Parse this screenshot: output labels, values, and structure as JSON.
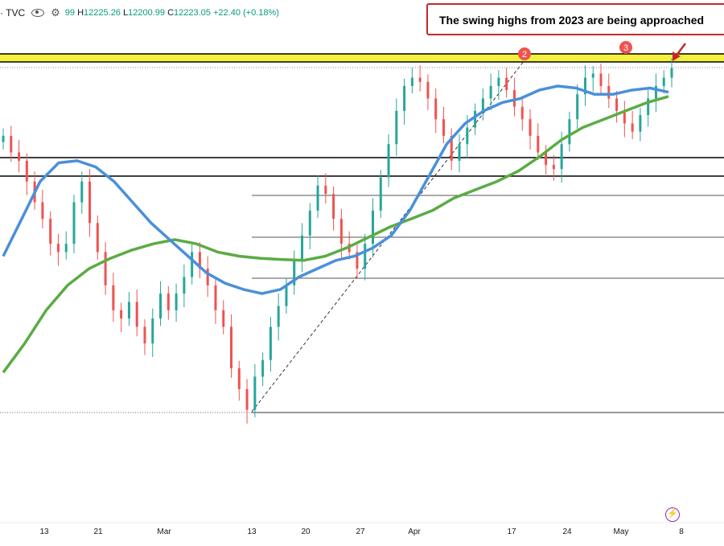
{
  "legend": {
    "symbol": "· TVC",
    "open_fragment": "99",
    "high_label": "H",
    "high": "12225.26",
    "low_label": "L",
    "low": "12200.99",
    "close_label": "C",
    "close": "12223.05",
    "change": "+22.40 (+0.18%)"
  },
  "annotation": {
    "text": "The swing highs from 2023 are being approached",
    "markers": [
      "2",
      "3"
    ]
  },
  "icons": {
    "visibility": "eye-icon",
    "settings": "gear-icon",
    "alert": "lightning-icon"
  },
  "colors": {
    "ma_fast": "#4a90d9",
    "ma_slow": "#5aac44",
    "up": "#26a69a",
    "down": "#ef5350",
    "highlight_band": "#f5f03c",
    "callout_border": "#c62828",
    "marker": "#ef5350"
  },
  "chart_data": {
    "type": "candlestick",
    "title": "",
    "x_tick_labels": [
      "13",
      "21",
      "Mar",
      "13",
      "20",
      "27",
      "Apr",
      "17",
      "24",
      "May",
      "8"
    ],
    "y_axis_visible": false,
    "grid": false,
    "series": [
      {
        "kind": "candles",
        "closes": [
          12060,
          12020,
          12000,
          11950,
          11900,
          11860,
          11800,
          11780,
          11800,
          11900,
          11950,
          11850,
          11780,
          11700,
          11640,
          11620,
          11660,
          11600,
          11560,
          11620,
          11680,
          11640,
          11680,
          11720,
          11780,
          11740,
          11700,
          11640,
          11600,
          11500,
          11450,
          11400,
          11480,
          11520,
          11600,
          11650,
          11700,
          11760,
          11820,
          11880,
          11940,
          11920,
          11860,
          11800,
          11780,
          11740,
          11800,
          11880,
          11960,
          12040,
          12120,
          12180,
          12200,
          12190,
          12150,
          12100,
          12060,
          12000,
          12040,
          12080,
          12120,
          12150,
          12180,
          12200,
          12170,
          12130,
          12100,
          12060,
          12020,
          11990,
          11980,
          12040,
          12100,
          12160,
          12200,
          12210,
          12180,
          12150,
          12120,
          12090,
          12070,
          12110,
          12150,
          12180,
          12200,
          12223
        ]
      },
      {
        "kind": "moving_average",
        "color": "blue",
        "values": [
          11770,
          11860,
          11950,
          11995,
          12000,
          11985,
          11950,
          11900,
          11850,
          11810,
          11770,
          11730,
          11705,
          11690,
          11680,
          11690,
          11720,
          11740,
          11760,
          11770,
          11790,
          11820,
          11880,
          11960,
          12040,
          12090,
          12120,
          12140,
          12150,
          12170,
          12180,
          12175,
          12160,
          12160,
          12170,
          12175,
          12165
        ]
      },
      {
        "kind": "moving_average",
        "color": "green",
        "values": [
          11490,
          11560,
          11640,
          11700,
          11740,
          11765,
          11785,
          11800,
          11810,
          11800,
          11780,
          11770,
          11765,
          11762,
          11760,
          11770,
          11790,
          11815,
          11840,
          11860,
          11880,
          11910,
          11930,
          11950,
          11975,
          12010,
          12050,
          12080,
          12100,
          12120,
          12140,
          12155
        ]
      }
    ],
    "annotations": [
      {
        "label": "2"
      },
      {
        "label": "3"
      }
    ]
  }
}
